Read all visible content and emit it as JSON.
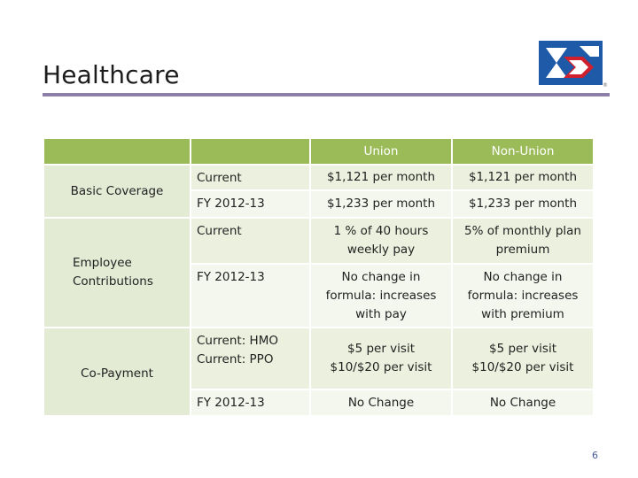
{
  "slide": {
    "title": "Healthcare",
    "page_number": "6"
  },
  "colors": {
    "title_rule": "#8c7fa8",
    "header_green": "#9bbb59",
    "row_light": "#ebf1de",
    "row_lighter": "#f4f7ed",
    "logo_blue": "#1f5aa8",
    "logo_red": "#d0202e"
  },
  "logo": {
    "icon": "septa-logo-icon",
    "mark": "®"
  },
  "table": {
    "headers": [
      "",
      "",
      "Union",
      "Non-Union"
    ],
    "categories": [
      "Basic Coverage",
      "Employee Contributions",
      "Co-Payment"
    ],
    "rows": [
      {
        "label": "Current",
        "union": "$1,121 per month",
        "nonunion": "$1,121 per month"
      },
      {
        "label": "FY 2012-13",
        "union": "$1,233 per month",
        "nonunion": "$1,233 per month"
      },
      {
        "label": "Current",
        "union": "1 % of 40 hours weekly pay",
        "nonunion": "5% of monthly plan premium"
      },
      {
        "label": "FY 2012-13",
        "union": "No change in formula: increases with pay",
        "nonunion": "No change in formula: increases with premium"
      },
      {
        "label": "Current: HMO\nCurrent: PPO",
        "union": "$5 per visit\n$10/$20 per visit",
        "nonunion": "$5 per visit\n$10/$20 per visit"
      },
      {
        "label": "FY 2012-13",
        "union": "No Change",
        "nonunion": "No Change"
      }
    ]
  }
}
